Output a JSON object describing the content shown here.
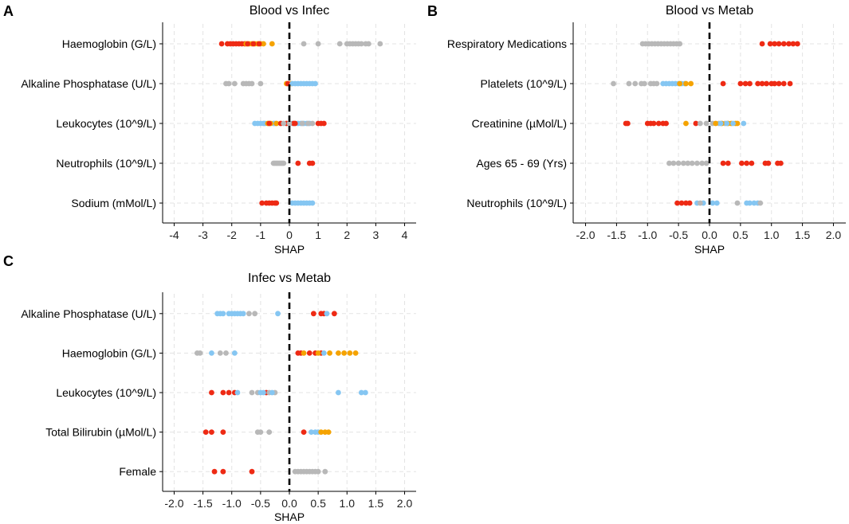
{
  "colors": {
    "red": "#ee2a14",
    "orange": "#f5a300",
    "blue": "#85c6f2",
    "gray": "#b8b8b8"
  },
  "chart_data": [
    {
      "type": "scatter",
      "panel_label": "A",
      "title": "Blood vs Infec",
      "xlabel": "SHAP",
      "xlim": [
        -4.4,
        4.4
      ],
      "xticks": [
        "-4",
        "-3",
        "-2",
        "-1",
        "0",
        "1",
        "2",
        "3",
        "4"
      ],
      "xtick_values": [
        -4,
        -3,
        -2,
        -1,
        0,
        1,
        2,
        3,
        4
      ],
      "features": [
        "Haemoglobin (G/L)",
        "Alkaline Phosphatase (U/L)",
        "Leukocytes (10^9/L)",
        "Neutrophils (10^9/L)",
        "Sodium (mMol/L)"
      ],
      "points": [
        {
          "f": 0,
          "x": [
            -2.35,
            -2.15,
            -2.05,
            -1.95,
            -1.85,
            -1.75,
            -1.65,
            -1.55
          ],
          "c": "red"
        },
        {
          "f": 0,
          "x": [
            -1.5,
            -1.4,
            -1.3,
            -1.2,
            -1.1,
            -1.0,
            -0.9,
            -0.6
          ],
          "c": "orange"
        },
        {
          "f": 0,
          "x": [
            -1.45,
            -1.25,
            -1.05
          ],
          "c": "red"
        },
        {
          "f": 0,
          "x": [
            0.5,
            1.0,
            1.75,
            2.0,
            2.1,
            2.2,
            2.3,
            2.4,
            2.5,
            2.65,
            2.75,
            3.15
          ],
          "c": "gray"
        },
        {
          "f": 1,
          "x": [
            -2.2,
            -2.1,
            -1.9,
            -1.6,
            -1.5,
            -1.4,
            -1.3,
            -1.0
          ],
          "c": "gray"
        },
        {
          "f": 1,
          "x": [
            -0.1,
            0.05
          ],
          "c": "orange"
        },
        {
          "f": 1,
          "x": [
            -0.05
          ],
          "c": "red"
        },
        {
          "f": 1,
          "x": [
            0.1,
            0.2,
            0.3,
            0.4,
            0.5,
            0.6,
            0.7,
            0.8,
            0.9
          ],
          "c": "blue"
        },
        {
          "f": 2,
          "x": [
            -1.2,
            -1.1,
            -1.0,
            -0.9,
            -0.85,
            -0.55,
            -0.5,
            0.1,
            0.3,
            0.4,
            0.5,
            0.6,
            0.7
          ],
          "c": "blue"
        },
        {
          "f": 2,
          "x": [
            -0.75,
            -0.65,
            -0.45
          ],
          "c": "orange"
        },
        {
          "f": 2,
          "x": [
            -0.7,
            -0.3,
            -0.1,
            0.15,
            0.2,
            1.0,
            1.1,
            1.2
          ],
          "c": "red"
        },
        {
          "f": 2,
          "x": [
            -0.2,
            0.0,
            0.45,
            0.65,
            0.8
          ],
          "c": "gray"
        },
        {
          "f": 3,
          "x": [
            -0.55,
            -0.5,
            -0.45,
            -0.4,
            -0.35,
            -0.3,
            -0.25,
            -0.2
          ],
          "c": "gray"
        },
        {
          "f": 3,
          "x": [
            0.3,
            0.7,
            0.8
          ],
          "c": "red"
        },
        {
          "f": 4,
          "x": [
            -0.95,
            -0.8,
            -0.7,
            -0.6,
            -0.5,
            -0.45
          ],
          "c": "red"
        },
        {
          "f": 4,
          "x": [
            0.1,
            0.2,
            0.3,
            0.4,
            0.5,
            0.6,
            0.7,
            0.8
          ],
          "c": "blue"
        }
      ]
    },
    {
      "type": "scatter",
      "panel_label": "B",
      "title": "Blood vs Metab",
      "xlabel": "SHAP",
      "xlim": [
        -2.2,
        2.2
      ],
      "xticks": [
        "-2.0",
        "-1.5",
        "-1.0",
        "-0.5",
        "0.0",
        "0.5",
        "1.0",
        "1.5",
        "2.0"
      ],
      "xtick_values": [
        -2.0,
        -1.5,
        -1.0,
        -0.5,
        0.0,
        0.5,
        1.0,
        1.5,
        2.0
      ],
      "features": [
        "Respiratory Medications",
        "Platelets (10^9/L)",
        "Creatinine (µMol/L)",
        "Ages 65 - 69 (Yrs)",
        "Neutrophils (10^9/L)"
      ],
      "points": [
        {
          "f": 0,
          "x": [
            -1.08,
            -1.03,
            -0.98,
            -0.93,
            -0.88,
            -0.83,
            -0.78,
            -0.73,
            -0.68,
            -0.63,
            -0.58,
            -0.53,
            -0.48
          ],
          "c": "gray"
        },
        {
          "f": 0,
          "x": [
            0.85,
            0.98,
            1.05,
            1.12,
            1.2,
            1.28,
            1.35,
            1.42
          ],
          "c": "red"
        },
        {
          "f": 1,
          "x": [
            -1.55,
            -1.3,
            -1.2,
            -1.1,
            -1.05,
            -0.95,
            -0.9,
            -0.85
          ],
          "c": "gray"
        },
        {
          "f": 1,
          "x": [
            -0.75,
            -0.7,
            -0.65,
            -0.6,
            -0.55,
            -0.5,
            -0.45,
            -0.4
          ],
          "c": "blue"
        },
        {
          "f": 1,
          "x": [
            -0.48,
            -0.38,
            -0.3
          ],
          "c": "orange"
        },
        {
          "f": 1,
          "x": [
            0.22,
            0.5,
            0.58,
            0.65,
            0.78,
            0.85,
            0.92,
            1.0,
            1.05,
            1.12,
            1.2,
            1.3
          ],
          "c": "red"
        },
        {
          "f": 2,
          "x": [
            -1.35,
            -1.32,
            -1.0,
            -0.95,
            -0.9,
            -0.82,
            -0.75,
            -0.7,
            -0.22
          ],
          "c": "red"
        },
        {
          "f": 2,
          "x": [
            -0.38
          ],
          "c": "orange"
        },
        {
          "f": 2,
          "x": [
            -0.15,
            -0.05,
            0.05,
            0.15,
            0.25
          ],
          "c": "gray"
        },
        {
          "f": 2,
          "x": [
            0.1,
            0.2,
            0.3,
            0.35,
            0.42,
            0.45
          ],
          "c": "orange"
        },
        {
          "f": 2,
          "x": [
            0.18,
            0.28,
            0.38,
            0.55
          ],
          "c": "blue"
        },
        {
          "f": 3,
          "x": [
            -0.65,
            -0.58,
            -0.5,
            -0.42,
            -0.35,
            -0.28,
            -0.2,
            -0.12,
            -0.05
          ],
          "c": "gray"
        },
        {
          "f": 3,
          "x": [
            0.22,
            0.3,
            0.52,
            0.6,
            0.68,
            0.9,
            0.95,
            1.1,
            1.15
          ],
          "c": "red"
        },
        {
          "f": 4,
          "x": [
            -0.52,
            -0.45,
            -0.38,
            -0.32
          ],
          "c": "red"
        },
        {
          "f": 4,
          "x": [
            -0.2,
            -0.1,
            0.05,
            0.12,
            0.6,
            0.65,
            0.72,
            0.78
          ],
          "c": "blue"
        },
        {
          "f": 4,
          "x": [
            -0.15,
            0.45,
            0.82
          ],
          "c": "gray"
        }
      ]
    },
    {
      "type": "scatter",
      "panel_label": "C",
      "title": "Infec vs Metab",
      "xlabel": "SHAP",
      "xlim": [
        -2.2,
        2.2
      ],
      "xticks": [
        "-2.0",
        "-1.5",
        "-1.0",
        "-0.5",
        "0.0",
        "0.5",
        "1.0",
        "1.5",
        "2.0"
      ],
      "xtick_values": [
        -2.0,
        -1.5,
        -1.0,
        -0.5,
        0.0,
        0.5,
        1.0,
        1.5,
        2.0
      ],
      "features": [
        "Alkaline Phosphatase (U/L)",
        "Haemoglobin (G/L)",
        "Leukocytes (10^9/L)",
        "Total Bilirubin (µMol/L)",
        "Female"
      ],
      "points": [
        {
          "f": 0,
          "x": [
            -1.25,
            -1.2,
            -1.15,
            -1.05,
            -1.0,
            -0.95,
            -0.9,
            -0.85,
            -0.8,
            -0.2
          ],
          "c": "blue"
        },
        {
          "f": 0,
          "x": [
            -0.7,
            -0.6
          ],
          "c": "gray"
        },
        {
          "f": 0,
          "x": [
            0.42,
            0.55,
            0.6,
            0.78
          ],
          "c": "red"
        },
        {
          "f": 0,
          "x": [
            0.65
          ],
          "c": "blue"
        },
        {
          "f": 1,
          "x": [
            -1.6,
            -1.55,
            -1.2,
            -1.1
          ],
          "c": "gray"
        },
        {
          "f": 1,
          "x": [
            -1.35,
            -0.95
          ],
          "c": "blue"
        },
        {
          "f": 1,
          "x": [
            0.15,
            0.2,
            0.35,
            0.45,
            0.55
          ],
          "c": "red"
        },
        {
          "f": 1,
          "x": [
            0.25,
            0.5,
            0.7,
            0.85,
            0.95,
            1.05,
            1.15
          ],
          "c": "orange"
        },
        {
          "f": 1,
          "x": [
            0.6
          ],
          "c": "blue"
        },
        {
          "f": 2,
          "x": [
            -1.35,
            -1.15,
            -1.05,
            -0.95,
            -0.4
          ],
          "c": "red"
        },
        {
          "f": 2,
          "x": [
            -0.65,
            -0.55,
            -0.35,
            -0.25
          ],
          "c": "gray"
        },
        {
          "f": 2,
          "x": [
            -0.9,
            -0.5,
            -0.45,
            -0.3,
            0.85,
            1.25,
            1.32
          ],
          "c": "blue"
        },
        {
          "f": 3,
          "x": [
            -1.45,
            -1.35,
            -1.15,
            0.25
          ],
          "c": "red"
        },
        {
          "f": 3,
          "x": [
            -0.55,
            -0.5,
            -0.35
          ],
          "c": "gray"
        },
        {
          "f": 3,
          "x": [
            0.38,
            0.45,
            0.5
          ],
          "c": "blue"
        },
        {
          "f": 3,
          "x": [
            0.55,
            0.62,
            0.68
          ],
          "c": "orange"
        },
        {
          "f": 4,
          "x": [
            -1.3,
            -1.15,
            -0.65
          ],
          "c": "red"
        },
        {
          "f": 4,
          "x": [
            0.1,
            0.15,
            0.2,
            0.25,
            0.3,
            0.35,
            0.4,
            0.45,
            0.5,
            0.62
          ],
          "c": "gray"
        }
      ]
    }
  ]
}
